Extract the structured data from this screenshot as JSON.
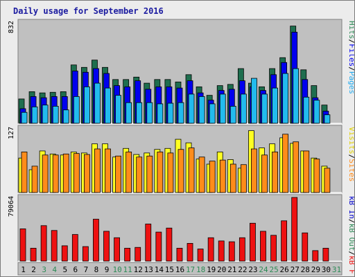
{
  "title": "Daily usage for September 2016",
  "colors": {
    "background": "#ececec",
    "plot_bg": "#c0c0c0",
    "title": "#1a1aa0",
    "weekend_label": "#2e8b57",
    "weekday_label": "#000000",
    "hits": "#1e6e4e",
    "files": "#0000ee",
    "pages": "#22bbee",
    "visits": "#ffff22",
    "sites": "#ff8c1a",
    "kb_in": "#0000cc",
    "kb_out": "#2e8b57",
    "kb_f": "#ee1111"
  },
  "legend": {
    "top": [
      {
        "text": "Hits",
        "color": "#2e8b57"
      },
      {
        "text": "/",
        "color": "#000000"
      },
      {
        "text": "Files",
        "color": "#0000ee"
      },
      {
        "text": "/",
        "color": "#000000"
      },
      {
        "text": "Pages",
        "color": "#22aaee"
      }
    ],
    "middle": [
      {
        "text": "Visits",
        "color": "#e0d000"
      },
      {
        "text": "/",
        "color": "#000000"
      },
      {
        "text": "Sites",
        "color": "#ff8c1a"
      }
    ],
    "bottom": [
      {
        "text": "kB In",
        "color": "#0000cc"
      },
      {
        "text": "/",
        "color": "#000000"
      },
      {
        "text": "kB Out",
        "color": "#2e8b57"
      },
      {
        "text": "/",
        "color": "#000000"
      },
      {
        "text": "kB F",
        "color": "#ee1111"
      }
    ]
  },
  "chart_data": [
    {
      "type": "bar",
      "panel": "hits_files_pages",
      "ymax_label": "832",
      "ylim": [
        0,
        832
      ],
      "categories": [
        "1",
        "2",
        "3",
        "4",
        "5",
        "6",
        "7",
        "8",
        "9",
        "10",
        "11",
        "12",
        "13",
        "14",
        "15",
        "16",
        "17",
        "18",
        "19",
        "20",
        "21",
        "22",
        "23",
        "24",
        "25",
        "26",
        "27",
        "28",
        "29",
        "30",
        "31"
      ],
      "weekend_days": [
        "3",
        "4",
        "10",
        "11",
        "17",
        "18",
        "24",
        "25",
        "31"
      ],
      "series": [
        {
          "name": "Hits",
          "values": [
            200,
            260,
            250,
            255,
            260,
            480,
            460,
            520,
            460,
            360,
            360,
            380,
            330,
            360,
            360,
            340,
            400,
            300,
            230,
            310,
            320,
            450,
            330,
            300,
            450,
            540,
            800,
            440,
            310,
            150,
            0
          ]
        },
        {
          "name": "Files",
          "values": [
            120,
            220,
            210,
            220,
            220,
            430,
            420,
            450,
            410,
            310,
            300,
            350,
            280,
            300,
            300,
            290,
            350,
            250,
            190,
            270,
            280,
            350,
            300,
            270,
            400,
            500,
            750,
            360,
            210,
            100,
            0
          ]
        },
        {
          "name": "Pages",
          "values": [
            90,
            135,
            150,
            140,
            110,
            220,
            300,
            330,
            290,
            230,
            170,
            170,
            170,
            160,
            165,
            170,
            240,
            220,
            160,
            240,
            140,
            240,
            370,
            240,
            290,
            410,
            450,
            215,
            190,
            70,
            0
          ]
        }
      ]
    },
    {
      "type": "bar",
      "panel": "visits_sites",
      "ymax_label": "127",
      "ylim": [
        0,
        127
      ],
      "categories": [
        "1",
        "2",
        "3",
        "4",
        "5",
        "6",
        "7",
        "8",
        "9",
        "10",
        "11",
        "12",
        "13",
        "14",
        "15",
        "16",
        "17",
        "18",
        "19",
        "20",
        "21",
        "22",
        "23",
        "24",
        "25",
        "26",
        "27",
        "28",
        "29",
        "30",
        "31"
      ],
      "series": [
        {
          "name": "Visits",
          "values": [
            68,
            45,
            82,
            76,
            74,
            80,
            78,
            96,
            96,
            70,
            87,
            75,
            78,
            85,
            87,
            105,
            98,
            66,
            56,
            80,
            65,
            48,
            122,
            88,
            96,
            108,
            97,
            82,
            68,
            52,
            0
          ]
        },
        {
          "name": "Sites",
          "values": [
            80,
            52,
            74,
            74,
            76,
            77,
            75,
            86,
            86,
            72,
            80,
            70,
            72,
            80,
            78,
            85,
            88,
            70,
            62,
            64,
            56,
            55,
            86,
            74,
            80,
            115,
            100,
            82,
            66,
            48,
            0
          ]
        }
      ]
    },
    {
      "type": "bar",
      "panel": "kb",
      "ymax_label": "79064",
      "ylim": [
        0,
        79064
      ],
      "categories": [
        "1",
        "2",
        "3",
        "4",
        "5",
        "6",
        "7",
        "8",
        "9",
        "10",
        "11",
        "12",
        "13",
        "14",
        "15",
        "16",
        "17",
        "18",
        "19",
        "20",
        "21",
        "22",
        "23",
        "24",
        "25",
        "26",
        "27",
        "28",
        "29",
        "30",
        "31"
      ],
      "series": [
        {
          "name": "kB F",
          "values": [
            40000,
            16000,
            44000,
            38000,
            19000,
            33000,
            18000,
            52000,
            37000,
            29000,
            16000,
            17000,
            46000,
            36000,
            41000,
            16000,
            22000,
            15000,
            29000,
            25000,
            24000,
            29000,
            47000,
            37000,
            32000,
            50000,
            79000,
            35000,
            13000,
            16000,
            0
          ]
        }
      ]
    }
  ]
}
